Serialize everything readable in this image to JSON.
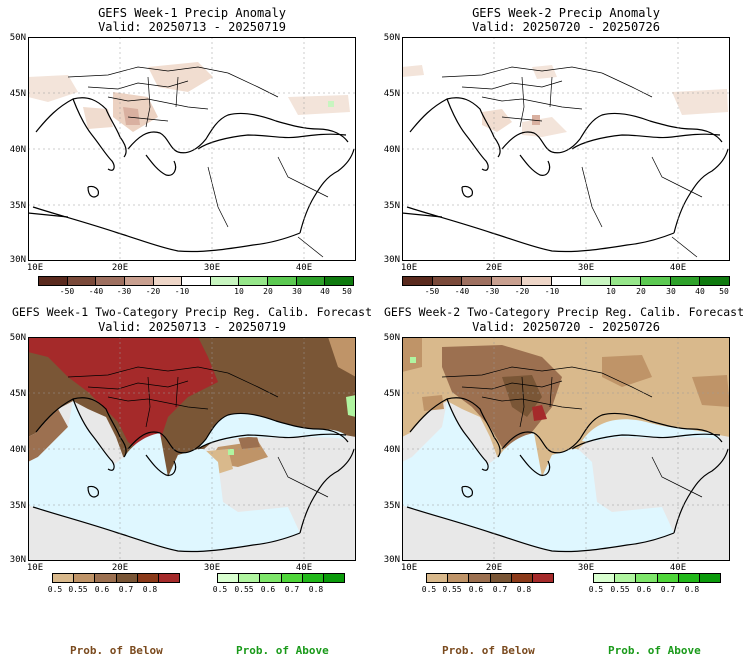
{
  "panels": {
    "w1_anom": {
      "title": "GEFS Week-1 Precip Anomaly",
      "valid": "Valid: 20250713 - 20250719"
    },
    "w2_anom": {
      "title": "GEFS Week-2 Precip Anomaly",
      "valid": "Valid: 20250720 - 20250726"
    },
    "w1_prob": {
      "title": "GEFS Week-1 Two-Category Precip Reg. Calib. Forecast",
      "valid": "Valid: 20250713 - 20250719"
    },
    "w2_prob": {
      "title": "GEFS Week-2 Two-Category Precip Reg. Calib. Forecast",
      "valid": "Valid: 20250720 - 20250726"
    }
  },
  "axes": {
    "lat_labels": [
      "50N",
      "45N",
      "40N",
      "35N",
      "30N"
    ],
    "lon_labels": [
      "10E",
      "20E",
      "30E",
      "40E"
    ]
  },
  "anomaly_colorbar": {
    "labels": [
      "-50",
      "-40",
      "-30",
      "-20",
      "-10",
      "10",
      "20",
      "30",
      "40",
      "50"
    ],
    "colors": [
      "#5a2a1e",
      "#7a4a3a",
      "#9e7060",
      "#c9a090",
      "#eed6c8",
      "#ffffff",
      "#c8f5c0",
      "#96e68a",
      "#5cc952",
      "#2ea12a",
      "#0f7a0f"
    ]
  },
  "prob_below_colorbar": {
    "labels": [
      "0.5",
      "0.55",
      "0.6",
      "0.7",
      "0.8"
    ],
    "colors": [
      "#d9b98c",
      "#bf9468",
      "#9c7050",
      "#7a5636",
      "#8b3a1a",
      "#a52a2a"
    ]
  },
  "prob_above_colorbar": {
    "labels": [
      "0.5",
      "0.55",
      "0.6",
      "0.7",
      "0.8"
    ],
    "colors": [
      "#d9ffd0",
      "#b0f5a0",
      "#7ee66a",
      "#4fd63a",
      "#22b81a",
      "#0a9a0a"
    ]
  },
  "footer": {
    "below": "Prob. of Below",
    "above": "Prob. of Above",
    "below_color": "#7a4a1e",
    "above_color": "#1a9a1a"
  }
}
